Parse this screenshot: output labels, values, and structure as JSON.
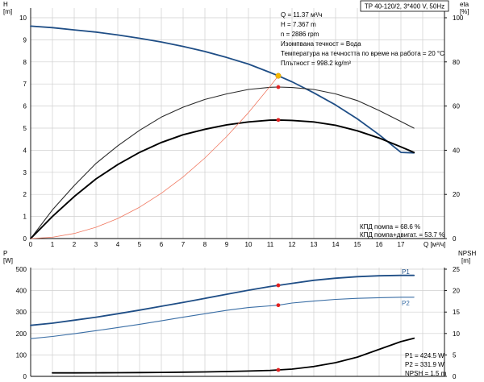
{
  "chart_data": [
    {
      "type": "line",
      "panel": "top",
      "title": "TP 40-120/2, 3*400 V, 50Hz",
      "left_axis": {
        "label_top": "H",
        "label_unit": "[m]",
        "range": [
          0,
          10
        ],
        "ticks": [
          "0",
          "1",
          "2",
          "3",
          "4",
          "5",
          "6",
          "7",
          "8",
          "9",
          "10"
        ]
      },
      "right_axis": {
        "label_top": "eta",
        "label_unit": "[%]",
        "range": [
          0,
          100
        ],
        "ticks": [
          "0",
          "20",
          "40",
          "60",
          "80",
          "100"
        ]
      },
      "x_axis": {
        "label": "Q [м³/ч]",
        "range": [
          0,
          19
        ],
        "ticks": [
          "0",
          "1",
          "2",
          "3",
          "4",
          "5",
          "6",
          "7",
          "8",
          "9",
          "10",
          "11",
          "12",
          "13",
          "14",
          "15",
          "16",
          "17"
        ]
      },
      "grid": true,
      "series": [
        {
          "key": "H",
          "axis": "left",
          "color": "#1f4e86",
          "x": [
            0,
            1,
            2,
            3,
            4,
            5,
            6,
            7,
            8,
            9,
            10,
            11,
            11.37,
            12,
            13,
            14,
            15,
            16,
            17,
            17.6
          ],
          "y": [
            9.62,
            9.55,
            9.45,
            9.35,
            9.22,
            9.07,
            8.9,
            8.7,
            8.47,
            8.2,
            7.9,
            7.52,
            7.37,
            7.1,
            6.6,
            6.05,
            5.42,
            4.7,
            3.9,
            3.88
          ]
        },
        {
          "key": "eta_pump",
          "axis": "right",
          "color": "#2a2a2a",
          "x": [
            0,
            1,
            2,
            3,
            4,
            5,
            6,
            7,
            8,
            9,
            10,
            11,
            11.37,
            12,
            13,
            14,
            15,
            16,
            17,
            17.6
          ],
          "y": [
            0,
            13,
            24,
            34,
            42,
            49,
            55,
            59.5,
            63,
            65.5,
            67.5,
            68.5,
            68.6,
            68.4,
            67.5,
            65.5,
            62.5,
            58,
            53,
            50
          ]
        },
        {
          "key": "eta_total",
          "axis": "right",
          "color": "#000000",
          "x": [
            0,
            1,
            2,
            3,
            4,
            5,
            6,
            7,
            8,
            9,
            10,
            11,
            11.37,
            12,
            13,
            14,
            15,
            16,
            17,
            17.6
          ],
          "y": [
            0,
            10,
            19,
            27,
            33.5,
            39,
            43.5,
            47,
            49.5,
            51.5,
            52.8,
            53.6,
            53.7,
            53.5,
            52.8,
            51.3,
            48.8,
            45.5,
            41.5,
            39
          ]
        },
        {
          "key": "system",
          "axis": "left",
          "color": "#f07860",
          "x": [
            0,
            1,
            2,
            3,
            4,
            5,
            6,
            7,
            8,
            9,
            10,
            11,
            11.37
          ],
          "y": [
            0,
            0.06,
            0.23,
            0.51,
            0.91,
            1.42,
            2.05,
            2.79,
            3.65,
            4.62,
            5.7,
            6.9,
            7.37
          ]
        }
      ],
      "markers": [
        {
          "axis": "left",
          "x": 11.37,
          "y": 7.37,
          "color": "#f5b800",
          "r": 3.3
        },
        {
          "axis": "right",
          "x": 11.37,
          "y": 68.6,
          "color": "#e02020",
          "r": 2.4
        },
        {
          "axis": "right",
          "x": 11.37,
          "y": 53.7,
          "color": "#e02020",
          "r": 2.4
        }
      ],
      "info_lines": [
        "Q = 11.37 м³/ч",
        "H = 7.367 m",
        "n = 2886 rpm",
        "Изомпвана течност = Вода",
        "Температура на течността по време на работа = 20 °C",
        "Плътност = 998.2 kg/m³"
      ],
      "eff_lines": [
        "КПД помпа = 68.6 %",
        "КПД помпа+двигат. = 53.7 %"
      ]
    },
    {
      "type": "line",
      "panel": "bottom",
      "left_axis": {
        "label_top": "P",
        "label_unit": "[W]",
        "range": [
          0,
          500
        ],
        "ticks": [
          "0",
          "100",
          "200",
          "300",
          "400",
          "500"
        ]
      },
      "right_axis": {
        "label_top": "NPSH",
        "label_unit": "[m]",
        "range": [
          0,
          25
        ],
        "ticks": [
          "0",
          "5",
          "10",
          "15",
          "20",
          "25"
        ]
      },
      "x_axis": {
        "range": [
          0,
          19
        ]
      },
      "grid": true,
      "series": [
        {
          "key": "P1",
          "name": "P1",
          "axis": "left",
          "color": "#1f4e86",
          "x": [
            0,
            1,
            2,
            3,
            4,
            5,
            6,
            7,
            8,
            9,
            10,
            11,
            11.37,
            12,
            13,
            14,
            15,
            16,
            17,
            17.6
          ],
          "y": [
            238,
            248,
            262,
            276,
            292,
            309,
            327,
            345,
            364,
            383,
            402,
            419,
            424.5,
            434,
            448,
            458,
            465,
            469,
            471,
            471
          ]
        },
        {
          "key": "P2",
          "name": "P2",
          "axis": "left",
          "color": "#3a6ea5",
          "x": [
            0,
            1,
            2,
            3,
            4,
            5,
            6,
            7,
            8,
            9,
            10,
            11,
            11.37,
            12,
            13,
            14,
            15,
            16,
            17,
            17.6
          ],
          "y": [
            176,
            186,
            199,
            213,
            228,
            243,
            259,
            276,
            292,
            308,
            321,
            329,
            331.9,
            342,
            351,
            359,
            364,
            367,
            369,
            369
          ]
        },
        {
          "key": "NPSH",
          "axis": "right",
          "color": "#000000",
          "x": [
            1,
            2,
            3,
            4,
            5,
            6,
            7,
            8,
            9,
            10,
            11,
            11.37,
            12,
            13,
            14,
            15,
            16,
            17,
            17.6
          ],
          "y": [
            0.8,
            0.8,
            0.82,
            0.85,
            0.88,
            0.92,
            0.97,
            1.03,
            1.12,
            1.24,
            1.4,
            1.5,
            1.7,
            2.3,
            3.2,
            4.5,
            6.3,
            8.1,
            8.9
          ]
        }
      ],
      "markers": [
        {
          "axis": "left",
          "x": 11.37,
          "y": 424.5,
          "color": "#e02020",
          "r": 2.4
        },
        {
          "axis": "left",
          "x": 11.37,
          "y": 331.9,
          "color": "#e02020",
          "r": 2.4
        },
        {
          "axis": "right",
          "x": 11.37,
          "y": 1.5,
          "color": "#e02020",
          "r": 2.4
        }
      ],
      "info_lines": [
        "P1 = 424.5 W",
        "P2 = 331.9 W",
        "NPSH = 1.5 m"
      ]
    }
  ]
}
